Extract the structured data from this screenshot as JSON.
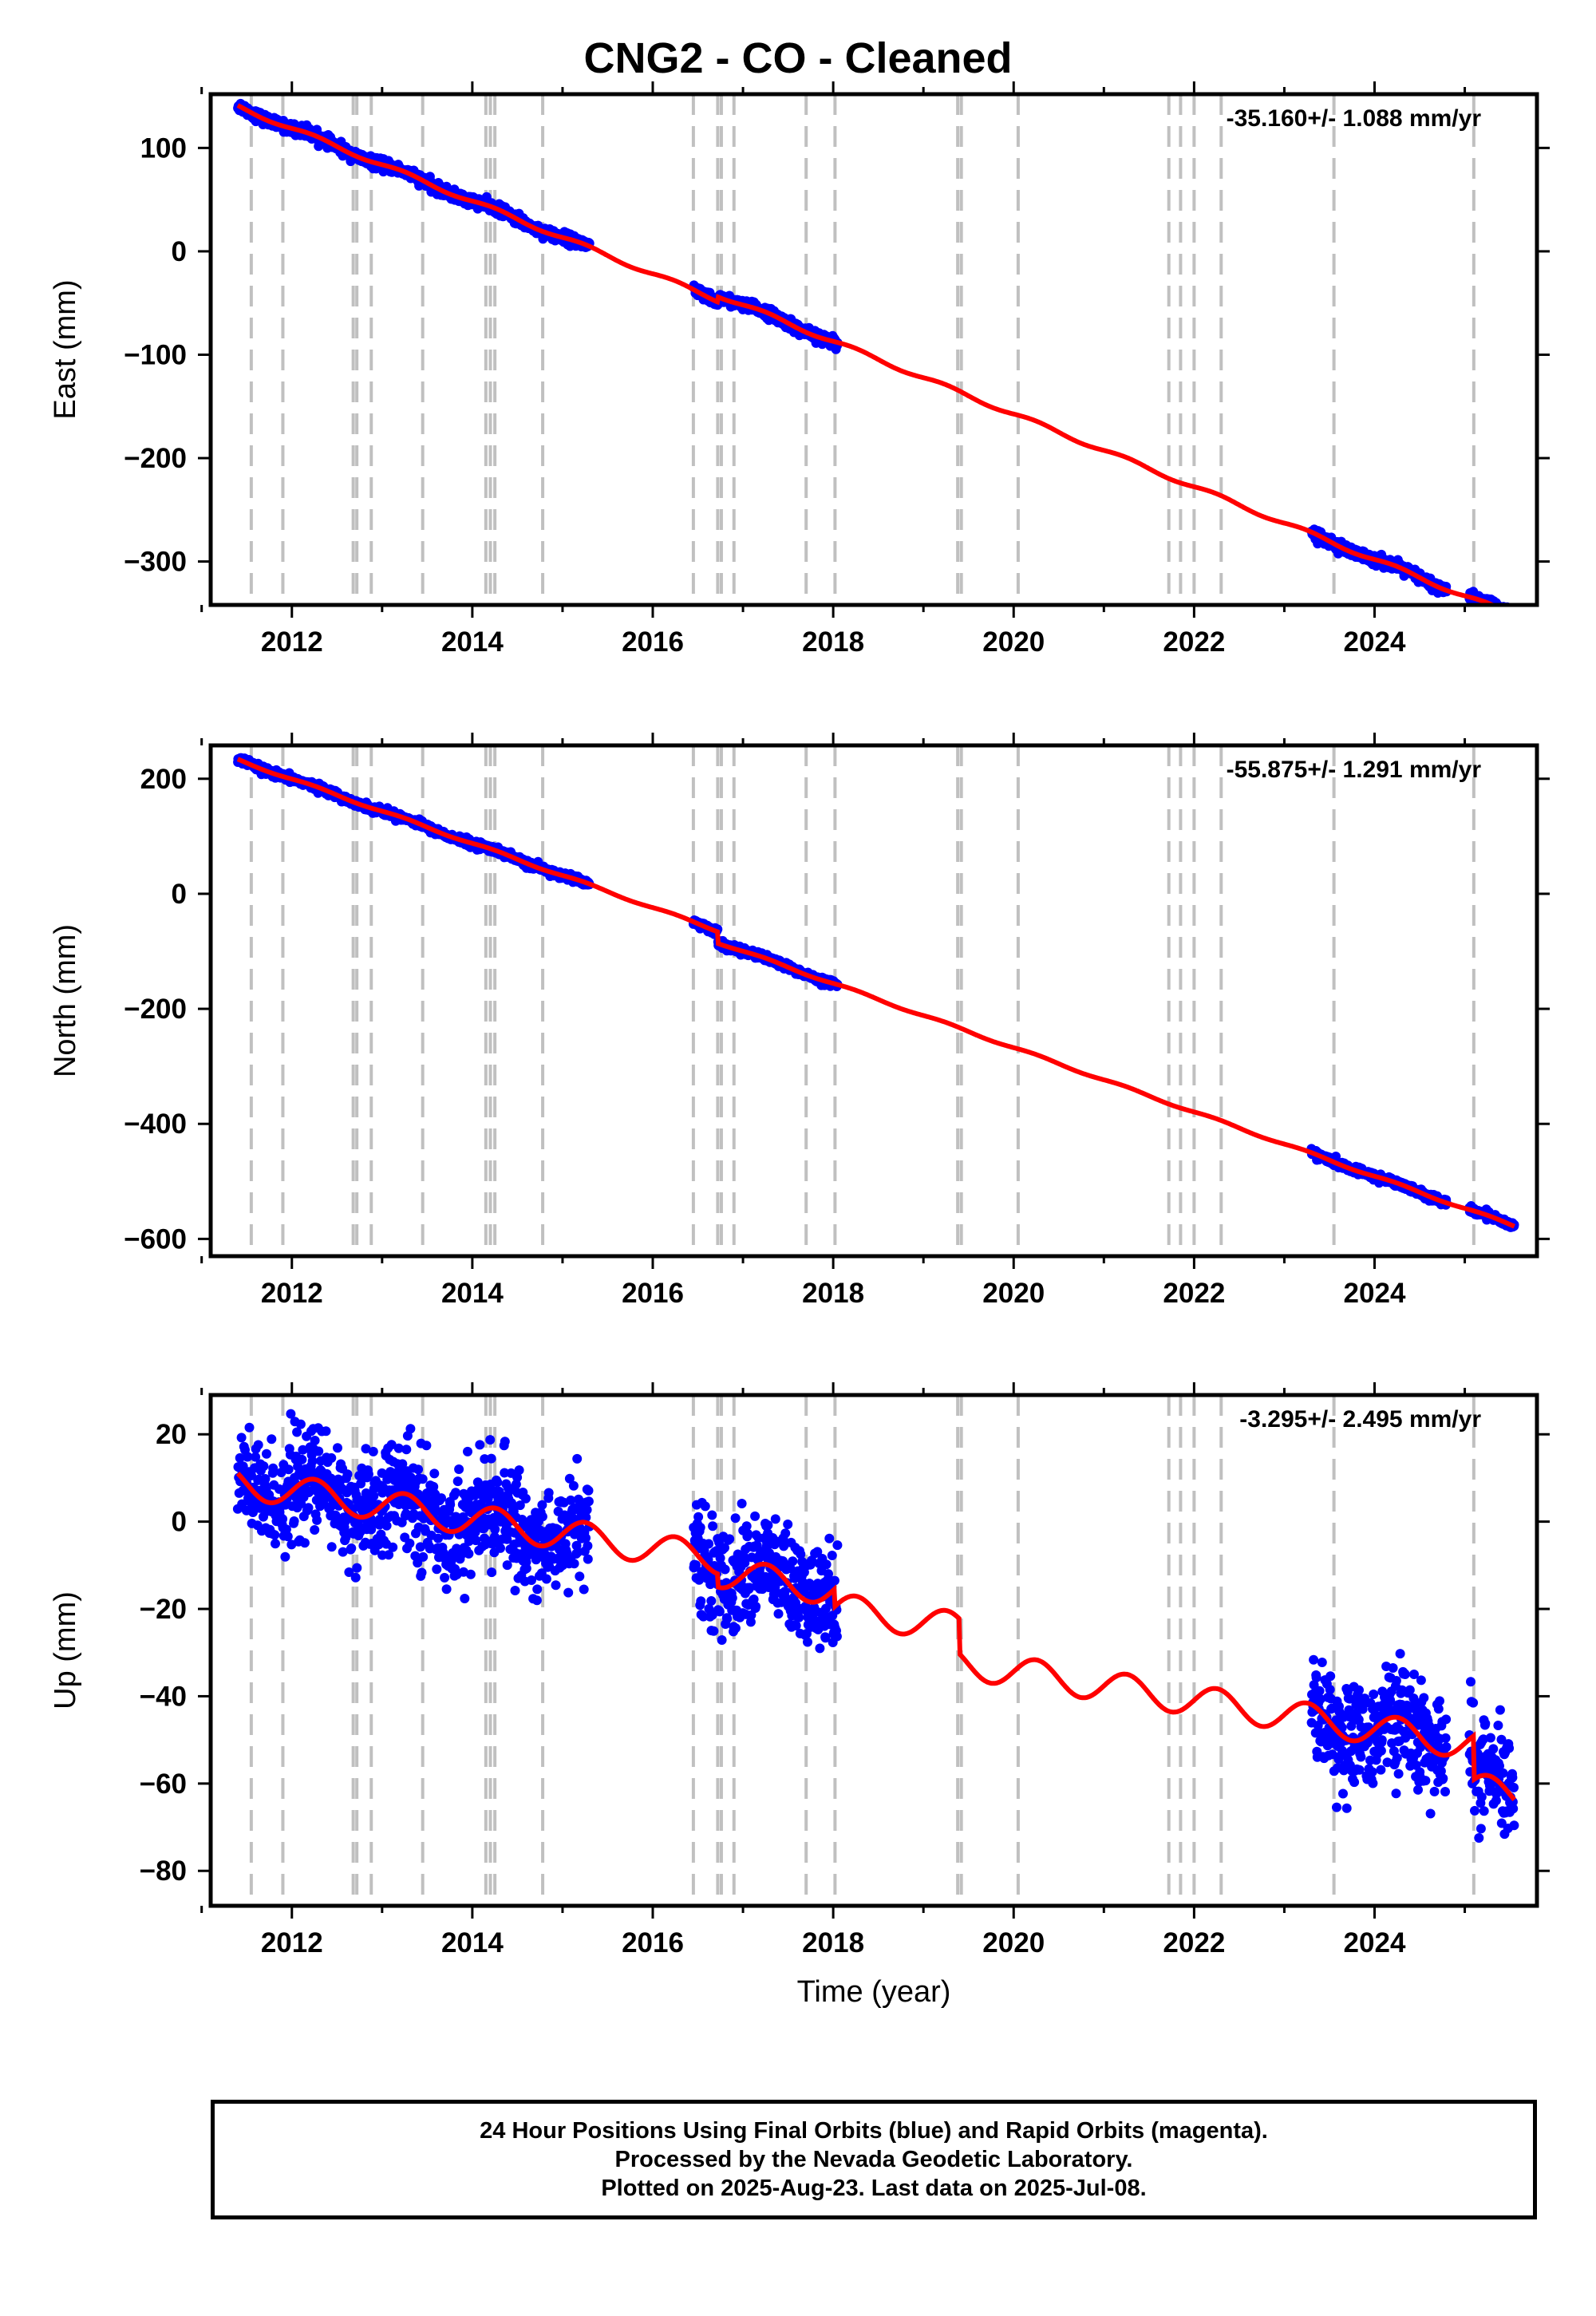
{
  "title": "CNG2  - CO - Cleaned",
  "colors": {
    "data_points": "#0000ff",
    "model_line": "#ff0000",
    "event_lines": "#c0c0c0",
    "axes": "#000000"
  },
  "chart_data": [
    {
      "type": "scatter",
      "panel": "east",
      "title": "",
      "xlabel": "",
      "ylabel": "East (mm)",
      "rate_label": "-35.160+/- 1.088 mm/yr",
      "xlim": [
        2011.1,
        2025.8
      ],
      "ylim": [
        -342,
        152
      ],
      "xticks": [
        2012,
        2014,
        2016,
        2018,
        2020,
        2022,
        2024
      ],
      "xtick_labels": [
        "2012",
        "2014",
        "2016",
        "2018",
        "2020",
        "2022",
        "2024"
      ],
      "yticks": [
        100,
        0,
        -100,
        -200,
        -300
      ],
      "ytick_labels": [
        "100",
        "0",
        "−100",
        "−200",
        "−300"
      ],
      "event_lines_x": [
        2011.55,
        2011.9,
        2012.68,
        2012.72,
        2012.88,
        2013.45,
        2014.15,
        2014.2,
        2014.25,
        2014.78,
        2016.45,
        2016.72,
        2016.76,
        2016.9,
        2017.7,
        2018.02,
        2019.38,
        2019.42,
        2020.05,
        2021.72,
        2021.85,
        2022.0,
        2022.3,
        2023.55,
        2025.1
      ],
      "data_segments": [
        [
          2011.4,
          2015.3
        ],
        [
          2016.45,
          2018.05
        ],
        [
          2023.3,
          2024.8
        ],
        [
          2025.05,
          2025.55
        ]
      ],
      "trend": {
        "t0": 2011.4,
        "y0": 140.0,
        "rate": -35.16,
        "noise": 2.5
      },
      "steps": [
        [
          2016.72,
          5.0
        ]
      ],
      "seasonal_amp": 2.0,
      "model_line": {
        "t_start": 2011.4,
        "t_end": 2025.55
      }
    },
    {
      "type": "scatter",
      "panel": "north",
      "title": "",
      "xlabel": "",
      "ylabel": "North (mm)",
      "rate_label": "-55.875+/- 1.291 mm/yr",
      "xlim": [
        2011.1,
        2025.8
      ],
      "ylim": [
        -630,
        258
      ],
      "xticks": [
        2012,
        2014,
        2016,
        2018,
        2020,
        2022,
        2024
      ],
      "xtick_labels": [
        "2012",
        "2014",
        "2016",
        "2018",
        "2020",
        "2022",
        "2024"
      ],
      "yticks": [
        200,
        0,
        -200,
        -400,
        -600
      ],
      "ytick_labels": [
        "200",
        "0",
        "−200",
        "−400",
        "−600"
      ],
      "event_lines_x": [
        2011.55,
        2011.9,
        2012.68,
        2012.72,
        2012.88,
        2013.45,
        2014.15,
        2014.2,
        2014.25,
        2014.78,
        2016.45,
        2016.72,
        2016.76,
        2016.9,
        2017.7,
        2018.02,
        2019.38,
        2019.42,
        2020.05,
        2021.72,
        2021.85,
        2022.0,
        2022.3,
        2023.55,
        2025.1
      ],
      "data_segments": [
        [
          2011.4,
          2015.3
        ],
        [
          2016.45,
          2018.05
        ],
        [
          2023.3,
          2024.8
        ],
        [
          2025.05,
          2025.55
        ]
      ],
      "trend": {
        "t0": 2011.4,
        "y0": 233.0,
        "rate": -55.875,
        "noise": 3.0
      },
      "steps": [
        [
          2016.72,
          -20.0
        ]
      ],
      "seasonal_amp": 2.0,
      "model_line": {
        "t_start": 2011.4,
        "t_end": 2025.55
      }
    },
    {
      "type": "scatter",
      "panel": "up",
      "title": "",
      "xlabel": "Time (year)",
      "ylabel": "Up (mm)",
      "rate_label": "-3.295+/- 2.495 mm/yr",
      "xlim": [
        2011.1,
        2025.8
      ],
      "ylim": [
        -88,
        29
      ],
      "xticks": [
        2012,
        2014,
        2016,
        2018,
        2020,
        2022,
        2024
      ],
      "xtick_labels": [
        "2012",
        "2014",
        "2016",
        "2018",
        "2020",
        "2022",
        "2024"
      ],
      "yticks": [
        20,
        0,
        -20,
        -40,
        -60,
        -80
      ],
      "ytick_labels": [
        "20",
        "0",
        "−20",
        "−40",
        "−60",
        "−80"
      ],
      "event_lines_x": [
        2011.55,
        2011.9,
        2012.68,
        2012.72,
        2012.88,
        2013.45,
        2014.15,
        2014.2,
        2014.25,
        2014.78,
        2016.45,
        2016.72,
        2016.76,
        2016.9,
        2017.7,
        2018.02,
        2019.38,
        2019.42,
        2020.05,
        2021.72,
        2021.85,
        2022.0,
        2022.3,
        2023.55,
        2025.1
      ],
      "data_segments": [
        [
          2011.4,
          2015.3
        ],
        [
          2016.45,
          2018.05
        ],
        [
          2023.3,
          2024.8
        ],
        [
          2025.05,
          2025.55
        ]
      ],
      "trend": {
        "t0": 2011.4,
        "y0": 9.0,
        "rate": -3.295,
        "noise": 6.0
      },
      "steps": [
        [
          2016.72,
          -3.0
        ],
        [
          2018.02,
          -4.0
        ],
        [
          2019.4,
          -8.0
        ],
        [
          2025.1,
          -10.0
        ]
      ],
      "seasonal_amp": 3.5,
      "model_line": {
        "t_start": 2011.4,
        "t_end": 2025.55
      }
    }
  ],
  "footer": {
    "line1": "24 Hour Positions Using Final Orbits (blue) and Rapid Orbits (magenta).",
    "line2": "Processed by the Nevada Geodetic Laboratory.",
    "line3": "Plotted on 2025-Aug-23. Last data on 2025-Jul-08."
  }
}
